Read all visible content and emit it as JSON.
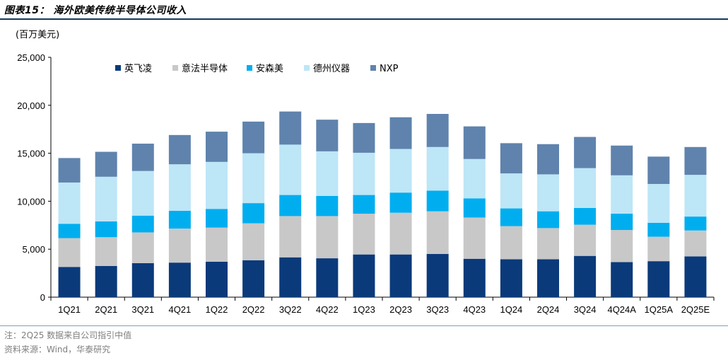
{
  "header": {
    "title": "图表15：  海外欧美传统半导体公司收入",
    "unit": "(百万美元)"
  },
  "footer": {
    "note": "注：2Q25 数据来自公司指引中值",
    "source": "资料来源：Wind，华泰研究"
  },
  "colors": {
    "title_rule": "#16365c",
    "footer_rule": "#7f9fbf"
  },
  "chart_data": {
    "type": "bar",
    "stacked": true,
    "categories": [
      "1Q21",
      "2Q21",
      "3Q21",
      "4Q21",
      "1Q22",
      "2Q22",
      "3Q22",
      "4Q22",
      "1Q23",
      "2Q23",
      "3Q23",
      "4Q23",
      "1Q24",
      "2Q24",
      "3Q24",
      "4Q24A",
      "1Q25A",
      "2Q25E"
    ],
    "ylim": [
      0,
      25000
    ],
    "yticks": [
      0,
      5000,
      10000,
      15000,
      20000,
      25000
    ],
    "ytick_labels": [
      "0",
      "5,000",
      "10,000",
      "15,000",
      "20,000",
      "25,000"
    ],
    "legend_position": "top-left",
    "grid": false,
    "series": [
      {
        "name": "英飞凌",
        "color": "#0b3a7a",
        "values": [
          3150,
          3250,
          3550,
          3600,
          3700,
          3850,
          4150,
          4050,
          4450,
          4450,
          4500,
          4000,
          3950,
          3950,
          4300,
          3650,
          3750,
          4250
        ]
      },
      {
        "name": "意法半导体",
        "color": "#c8c8c8",
        "values": [
          3000,
          3000,
          3200,
          3550,
          3550,
          3850,
          4300,
          4400,
          4250,
          4350,
          4450,
          4300,
          3450,
          3250,
          3250,
          3350,
          2550,
          2700
        ]
      },
      {
        "name": "安森美",
        "color": "#00aeef",
        "values": [
          1500,
          1650,
          1750,
          1850,
          1950,
          2100,
          2200,
          2100,
          1950,
          2100,
          2150,
          2000,
          1850,
          1750,
          1750,
          1700,
          1450,
          1450
        ]
      },
      {
        "name": "德州仪器",
        "color": "#bde6f7",
        "values": [
          4300,
          4650,
          4650,
          4850,
          4900,
          5200,
          5250,
          4650,
          4400,
          4550,
          4550,
          4100,
          3650,
          3850,
          4150,
          4000,
          4050,
          4350
        ]
      },
      {
        "name": "NXP",
        "color": "#5f83ad",
        "values": [
          2550,
          2600,
          2850,
          3050,
          3150,
          3300,
          3450,
          3300,
          3100,
          3300,
          3450,
          3400,
          3150,
          3150,
          3250,
          3100,
          2850,
          2900
        ]
      }
    ]
  }
}
